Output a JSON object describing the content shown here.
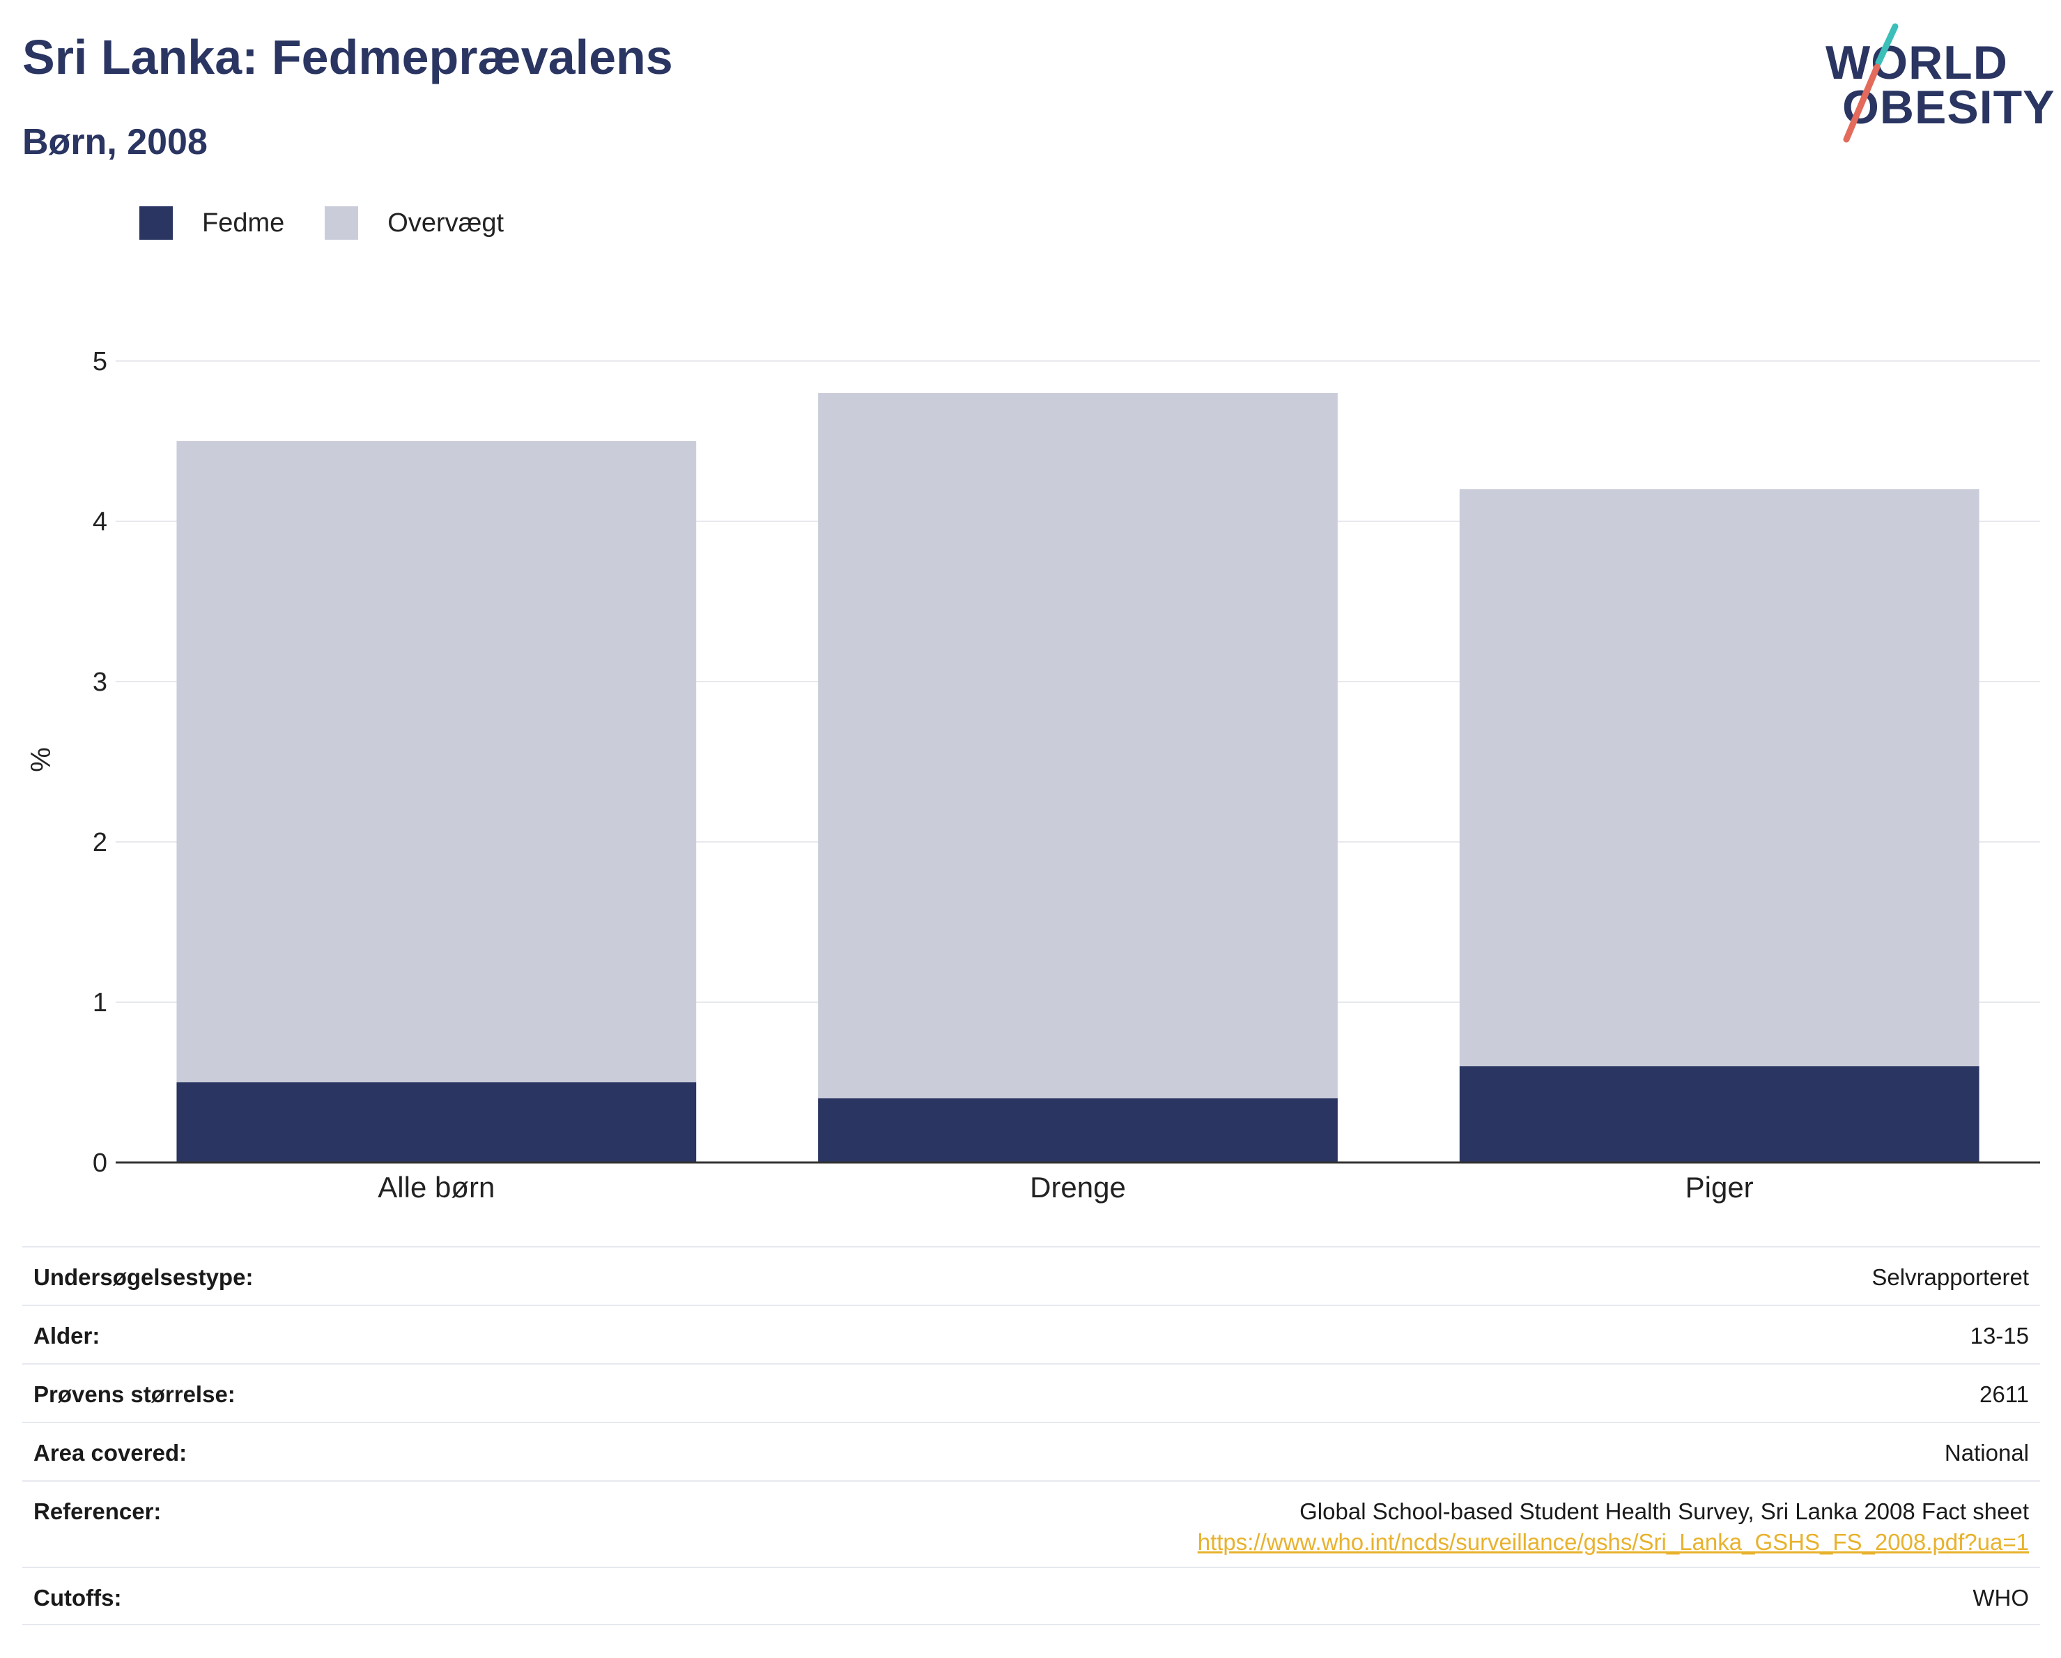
{
  "header": {
    "title": "Sri Lanka: Fedmeprævalens",
    "subtitle": "Børn, 2008"
  },
  "logo": {
    "line1": "WORLD",
    "line2": "OBESITY",
    "colors": {
      "text": "#2a3562",
      "slash_top": "#3bbfb8",
      "slash_bottom": "#e36b5c"
    }
  },
  "legend": [
    {
      "label": "Fedme",
      "color": "#2a3562"
    },
    {
      "label": "Overvægt",
      "color": "#cacdd9"
    }
  ],
  "chart_data": {
    "type": "bar",
    "stacked": true,
    "categories": [
      "Alle børn",
      "Drenge",
      "Piger"
    ],
    "series": [
      {
        "name": "Fedme",
        "values": [
          0.5,
          0.4,
          0.6
        ],
        "color": "#2a3562"
      },
      {
        "name": "Overvægt",
        "values": [
          4.0,
          4.4,
          3.6
        ],
        "color": "#cacdd9"
      }
    ],
    "title": "Sri Lanka: Fedmeprævalens",
    "subtitle": "Børn, 2008",
    "xlabel": "",
    "ylabel": "%",
    "ylim": [
      0,
      5
    ],
    "yticks": [
      0,
      1,
      2,
      3,
      4,
      5
    ],
    "grid": true,
    "legend_position": "top-left"
  },
  "info": [
    {
      "label": "Undersøgelsestype:",
      "value": "Selvrapporteret"
    },
    {
      "label": "Alder:",
      "value": "13-15"
    },
    {
      "label": "Prøvens størrelse:",
      "value": "2611"
    },
    {
      "label": "Area covered:",
      "value": "National"
    },
    {
      "label": "Referencer:",
      "value": "Global School-based Student Health Survey, Sri Lanka 2008 Fact sheet",
      "link": "https://www.who.int/ncds/surveillance/gshs/Sri_Lanka_GSHS_FS_2008.pdf?ua=1"
    },
    {
      "label": "Cutoffs:",
      "value": "WHO"
    }
  ]
}
